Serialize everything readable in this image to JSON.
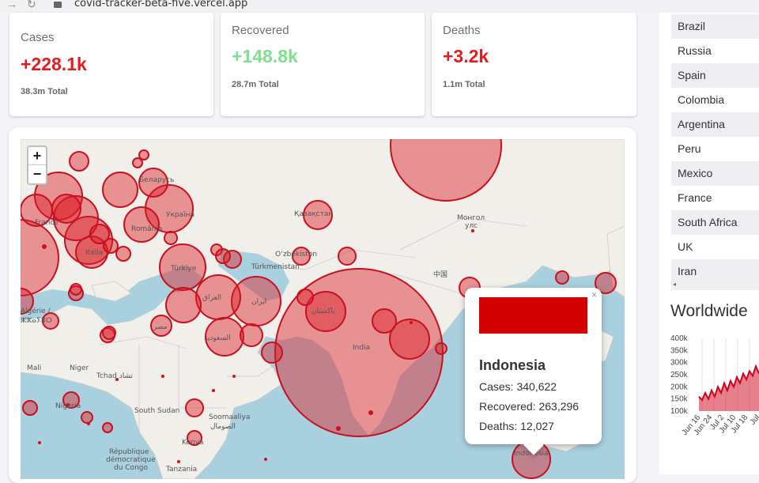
{
  "browser": {
    "url": "covid-tracker-beta-five.vercel.app"
  },
  "stats": {
    "cases": {
      "title": "Cases",
      "value": "+228.1k",
      "total": "38.3m Total",
      "color": "#e61b1b"
    },
    "recovered": {
      "title": "Recovered",
      "value": "+148.8k",
      "total": "28.7m Total",
      "color": "#7fe08f"
    },
    "deaths": {
      "title": "Deaths",
      "value": "+3.2k",
      "total": "1.1m Total",
      "color": "#e61b1b"
    }
  },
  "map": {
    "zoom_in": "+",
    "zoom_out": "−",
    "labels": [
      "France",
      "Italia",
      "Türkiye",
      "Беларусь",
      "Україна",
      "România",
      "Қазақстан",
      "Монгол улс",
      "O‘zbekiston",
      "Türkmenistan",
      "中国",
      "India",
      "پاکستان",
      "ایران",
      "العراق",
      "السعودية",
      "مصر",
      "Niger",
      "Tchad تشاد",
      "Mali",
      "Nigeria",
      "South Sudan",
      "Soomaaliya الصومال",
      "Kenya",
      "République démocratique du Congo",
      "Tanzania",
      "Algérie / ⵣⵣⴰⵢⴻⵔ",
      "Indonesia"
    ]
  },
  "popup": {
    "close": "×",
    "country": "Indonesia",
    "cases": "Cases: 340,622",
    "recovered": "Recovered: 263,296",
    "deaths": "Deaths: 12,027"
  },
  "countries": [
    "Brazil",
    "Russia",
    "Spain",
    "Colombia",
    "Argentina",
    "Peru",
    "Mexico",
    "France",
    "South Africa",
    "UK",
    "Iran"
  ],
  "worldwide": {
    "title": "Worldwide"
  },
  "chart_data": {
    "type": "area",
    "title": "",
    "x_ticks": [
      "Jun 16",
      "Jun 24",
      "Jul 2",
      "Jul 10",
      "Jul 18",
      "Jul"
    ],
    "y_ticks": [
      "400k",
      "350k",
      "300k",
      "250k",
      "200k",
      "150k",
      "100k"
    ],
    "ylim": [
      100000,
      400000
    ],
    "values": [
      160000,
      145000,
      175000,
      150000,
      185000,
      160000,
      200000,
      175000,
      215000,
      185000,
      225000,
      200000,
      240000,
      215000,
      255000,
      230000,
      265000,
      245000,
      285000,
      255000
    ],
    "color": "#d0021b"
  }
}
